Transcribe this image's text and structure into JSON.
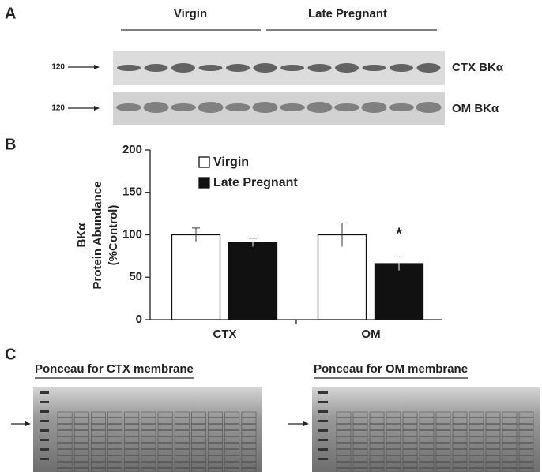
{
  "panel_a": {
    "letter": "A",
    "groups": [
      "Virgin",
      "Late Pregnant"
    ],
    "blots": [
      {
        "marker": "120",
        "label": "CTX BKα"
      },
      {
        "marker": "120",
        "label": "OM BKα"
      }
    ]
  },
  "chart_data": {
    "type": "bar",
    "panel": "B",
    "ylabel": [
      "BKα",
      "Protein Abundance",
      "(%Control)"
    ],
    "categories": [
      "CTX",
      "OM"
    ],
    "series": [
      {
        "name": "Virgin",
        "color": "#ffffff",
        "values": [
          100,
          100
        ],
        "errors": [
          8,
          14
        ]
      },
      {
        "name": "Late Pregnant",
        "color": "#111111",
        "values": [
          91,
          66
        ],
        "errors": [
          5,
          8
        ]
      }
    ],
    "annotation": "*",
    "ylim": [
      0,
      200
    ],
    "yticks": [
      0,
      50,
      100,
      150,
      200
    ]
  },
  "panel_c": {
    "letter": "C",
    "titles": [
      "Ponceau for CTX membrane",
      "Ponceau for OM membrane"
    ]
  }
}
